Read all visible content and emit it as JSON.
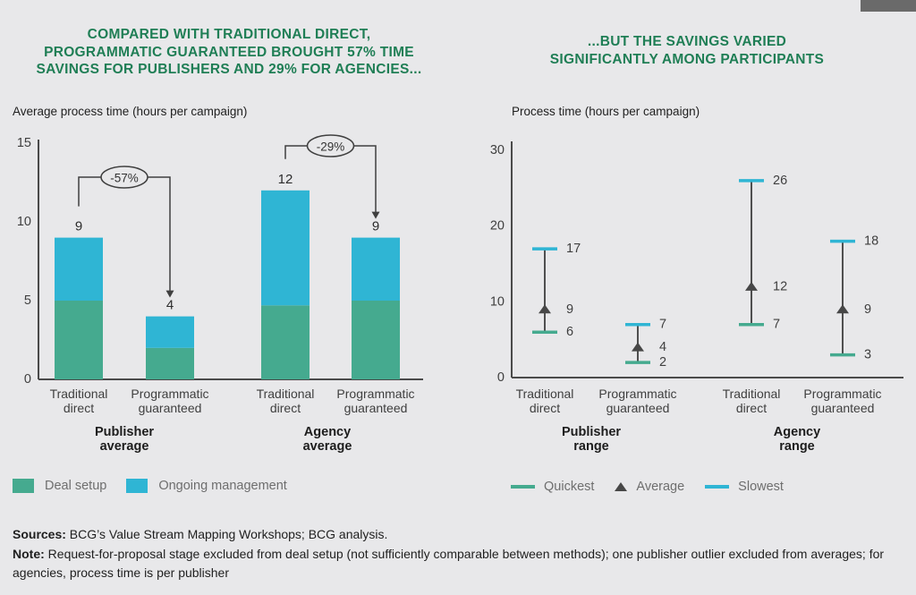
{
  "page": {
    "background": "#e8e8ea",
    "corner_tab_color": "#6a6a6a"
  },
  "left_panel": {
    "title": "COMPARED WITH TRADITIONAL DIRECT,\nPROGRAMMATIC GUARANTEED BROUGHT 57% TIME\nSAVINGS FOR PUBLISHERS AND 29% FOR AGENCIES...",
    "subtitle": "Average process time (hours per campaign)",
    "legend": [
      {
        "label": "Deal setup",
        "color": "#45aa8f"
      },
      {
        "label": "Ongoing management",
        "color": "#2fb5d4"
      }
    ]
  },
  "right_panel": {
    "title": "...BUT THE SAVINGS VARIED\nSIGNIFICANTLY AMONG PARTICIPANTS",
    "subtitle": "Process time (hours per campaign)",
    "legend": [
      {
        "label": "Quickest",
        "color": "#45aa8f",
        "marker": "line"
      },
      {
        "label": "Average",
        "color": "#474747",
        "marker": "triangle"
      },
      {
        "label": "Slowest",
        "color": "#2fb5d4",
        "marker": "line"
      }
    ]
  },
  "chart_data": [
    {
      "type": "bar",
      "stacked": true,
      "title": "Average process time (hours per campaign)",
      "categories": [
        "Traditional\ndirect",
        "Programmatic\nguaranteed",
        "Traditional\ndirect",
        "Programmatic\nguaranteed"
      ],
      "groups": [
        "Publisher\naverage",
        "Agency\naverage"
      ],
      "series": [
        {
          "name": "Deal setup",
          "color": "#45aa8f",
          "values": [
            5,
            2,
            4.7,
            5
          ]
        },
        {
          "name": "Ongoing management",
          "color": "#2fb5d4",
          "values": [
            4,
            2,
            7.3,
            4
          ]
        }
      ],
      "totals": [
        9,
        4,
        12,
        9
      ],
      "annotations": [
        {
          "label": "-57%",
          "from": 0,
          "to": 1
        },
        {
          "label": "-29%",
          "from": 2,
          "to": 3
        }
      ],
      "ylim": [
        0,
        15
      ],
      "yticks": [
        0,
        5,
        10,
        15
      ],
      "grid": false,
      "legend_position": "bottom"
    },
    {
      "type": "range",
      "title": "Process time (hours per campaign)",
      "categories": [
        "Traditional\ndirect",
        "Programmatic\nguaranteed",
        "Traditional\ndirect",
        "Programmatic\nguaranteed"
      ],
      "groups": [
        "Publisher\nrange",
        "Agency\nrange"
      ],
      "points": [
        {
          "quickest": 6,
          "average": 9,
          "slowest": 17
        },
        {
          "quickest": 2,
          "average": 4,
          "slowest": 7
        },
        {
          "quickest": 7,
          "average": 12,
          "slowest": 26
        },
        {
          "quickest": 3,
          "average": 9,
          "slowest": 18
        }
      ],
      "ylim": [
        0,
        30
      ],
      "yticks": [
        0,
        10,
        20,
        30
      ],
      "grid": false,
      "legend_position": "bottom"
    }
  ],
  "footer": {
    "sources_label": "Sources:",
    "sources_text": " BCG’s Value Stream Mapping Workshops; BCG analysis.",
    "note_label": "Note:",
    "note_text": " Request-for-proposal stage excluded from deal setup (not sufficiently comparable between methods); one publisher outlier excluded from averages; for agencies, process time is per publisher"
  }
}
